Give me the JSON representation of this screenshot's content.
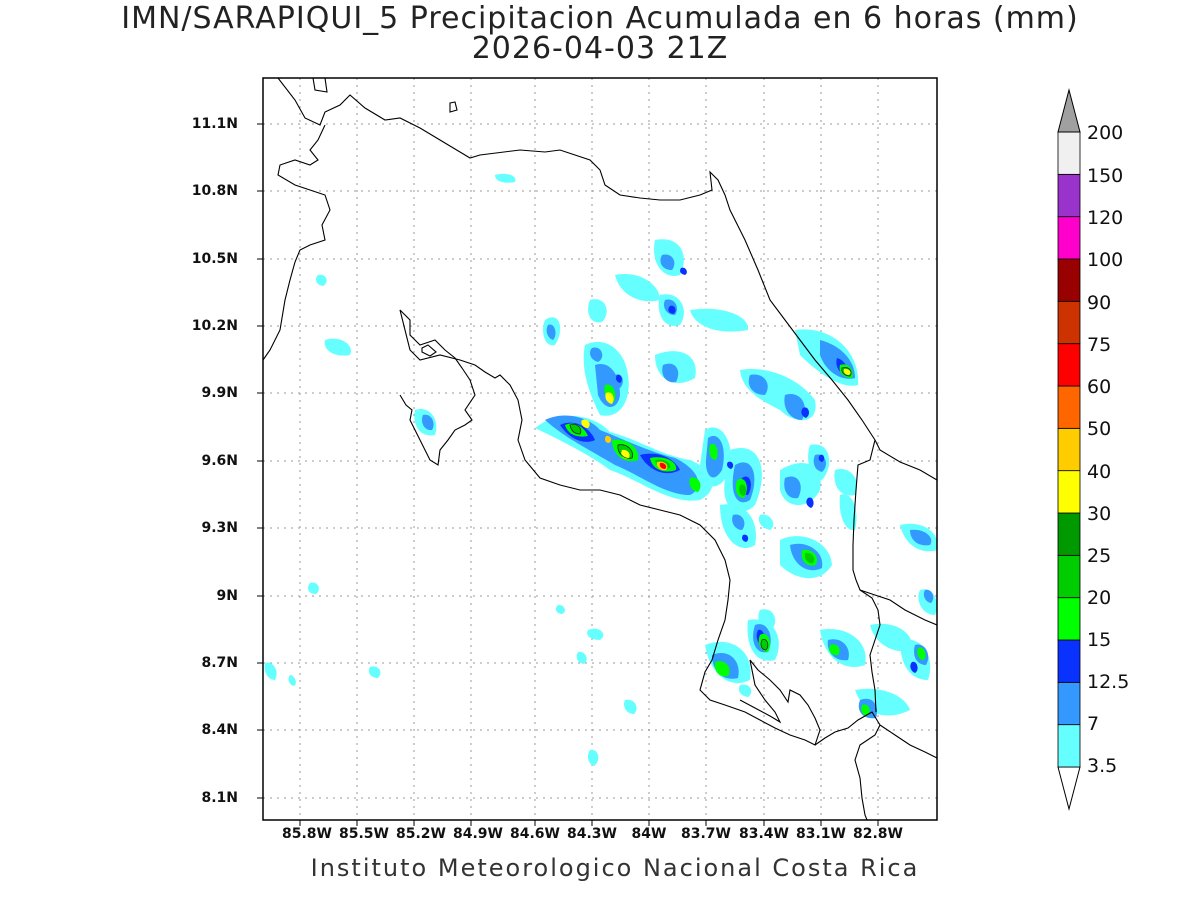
{
  "title_line1": "IMN/SARAPIQUI_5 Precipitacion Acumulada en 6 horas (mm)",
  "title_line2": "2026-04-03 21Z",
  "credit": "Instituto Meteorologico Nacional Costa Rica",
  "lat_ticks": [
    "11.1N",
    "10.8N",
    "10.5N",
    "10.2N",
    "9.9N",
    "9.6N",
    "9.3N",
    "9N",
    "8.7N",
    "8.4N",
    "8.1N"
  ],
  "lon_ticks": [
    "85.8W",
    "85.5W",
    "85.2W",
    "84.9W",
    "84.6W",
    "84.3W",
    "84W",
    "83.7W",
    "83.4W",
    "83.1W",
    "82.8W"
  ],
  "colorbar": {
    "levels": [
      "3.5",
      "7",
      "12.5",
      "15",
      "20",
      "25",
      "30",
      "40",
      "50",
      "60",
      "75",
      "90",
      "100",
      "120",
      "150",
      "200"
    ],
    "colors": [
      "#66ffff",
      "#3399ff",
      "#0a32ff",
      "#00ff00",
      "#00cc00",
      "#009900",
      "#ffff00",
      "#ffcc00",
      "#ff6600",
      "#ff0000",
      "#cc3300",
      "#990000",
      "#ff00cc",
      "#9933cc",
      "#f0f0f0",
      "#a0a0a0"
    ]
  }
}
